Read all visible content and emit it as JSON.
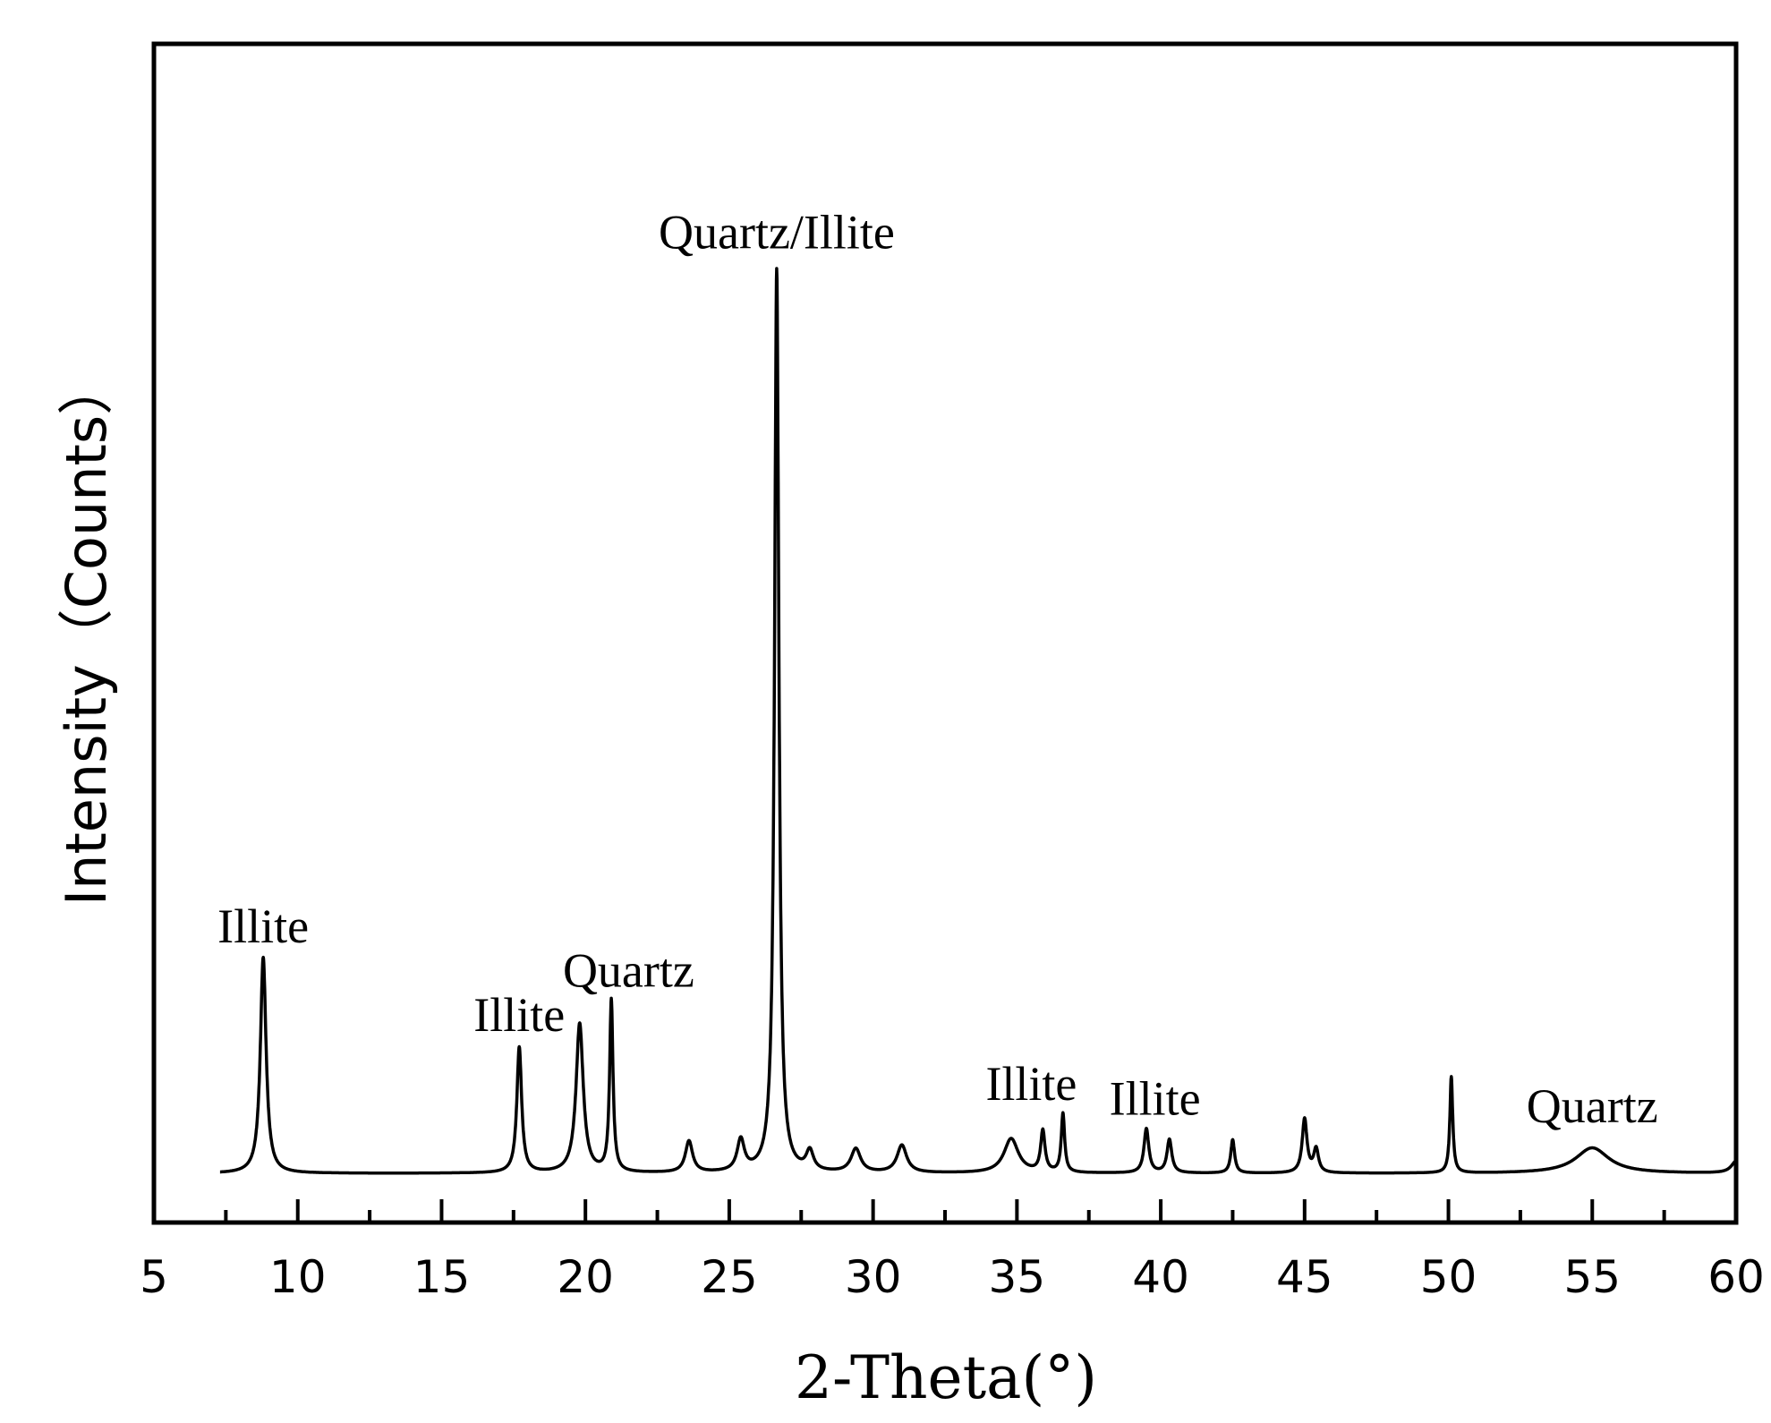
{
  "chart_data": {
    "type": "line",
    "title": "",
    "xlabel": "2-Theta(°)",
    "ylabel": "Intensity（Counts）",
    "xlim": [
      5,
      60
    ],
    "ylim": [
      0,
      1200
    ],
    "x_ticks": [
      5,
      10,
      15,
      20,
      25,
      30,
      35,
      40,
      45,
      50,
      55,
      60
    ],
    "y_ticks": [],
    "grid": false,
    "legend": "none",
    "baseline": 50,
    "x_start": 7.3,
    "series": [
      {
        "color": "#000000",
        "peaks": [
          {
            "x": 8.8,
            "height": 220,
            "width": 0.12
          },
          {
            "x": 17.7,
            "height": 128,
            "width": 0.1
          },
          {
            "x": 19.8,
            "height": 152,
            "width": 0.15
          },
          {
            "x": 20.9,
            "height": 175,
            "width": 0.07
          },
          {
            "x": 23.6,
            "height": 32,
            "width": 0.15
          },
          {
            "x": 25.4,
            "height": 32,
            "width": 0.15
          },
          {
            "x": 26.65,
            "height": 920,
            "width": 0.09
          },
          {
            "x": 27.8,
            "height": 20,
            "width": 0.15
          },
          {
            "x": 29.4,
            "height": 24,
            "width": 0.2
          },
          {
            "x": 31.0,
            "height": 28,
            "width": 0.2
          },
          {
            "x": 34.8,
            "height": 35,
            "width": 0.3
          },
          {
            "x": 35.9,
            "height": 42,
            "width": 0.09
          },
          {
            "x": 36.6,
            "height": 60,
            "width": 0.07
          },
          {
            "x": 39.5,
            "height": 45,
            "width": 0.1
          },
          {
            "x": 40.3,
            "height": 34,
            "width": 0.1
          },
          {
            "x": 42.5,
            "height": 34,
            "width": 0.08
          },
          {
            "x": 45.0,
            "height": 55,
            "width": 0.1
          },
          {
            "x": 45.4,
            "height": 24,
            "width": 0.1
          },
          {
            "x": 50.1,
            "height": 98,
            "width": 0.06
          },
          {
            "x": 55.0,
            "height": 26,
            "width": 0.7
          },
          {
            "x": 60.0,
            "height": 12,
            "width": 0.2
          }
        ]
      }
    ],
    "annotations": [
      {
        "text": "Illite",
        "x": 8.8,
        "y": 285
      },
      {
        "text": "Illite",
        "x": 17.7,
        "y": 195
      },
      {
        "text": "Quartz",
        "x": 21.5,
        "y": 240
      },
      {
        "text": "Quartz/Illite",
        "x": 26.65,
        "y": 992
      },
      {
        "text": "Illite",
        "x": 35.5,
        "y": 125
      },
      {
        "text": "Illite",
        "x": 39.8,
        "y": 110
      },
      {
        "text": "Quartz",
        "x": 55.0,
        "y": 102
      }
    ]
  }
}
